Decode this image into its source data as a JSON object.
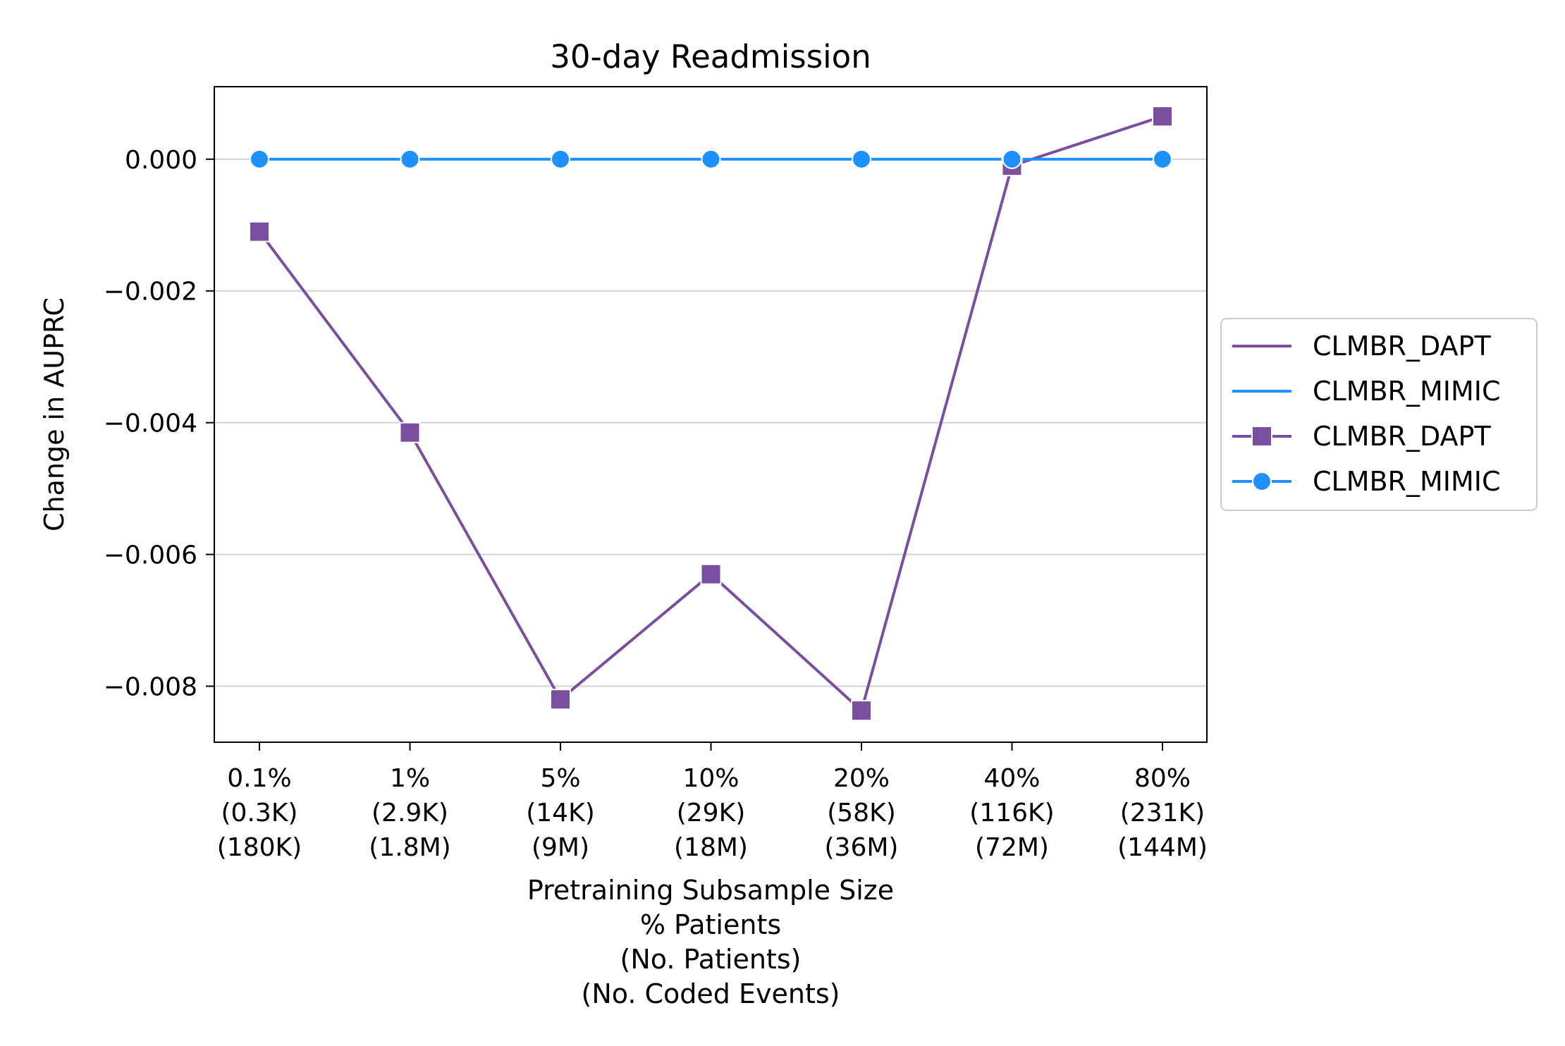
{
  "chart_data": {
    "type": "line",
    "title": "30-day Readmission",
    "ylabel": "Change in AUPRC",
    "xlabel_lines": [
      "Pretraining Subsample Size",
      "% Patients",
      "(No. Patients)",
      "(No. Coded Events)"
    ],
    "categories": [
      [
        "0.1%",
        "(0.3K)",
        "(180K)"
      ],
      [
        "1%",
        "(2.9K)",
        "(1.8M)"
      ],
      [
        "5%",
        "(14K)",
        "(9M)"
      ],
      [
        "10%",
        "(29K)",
        "(18M)"
      ],
      [
        "20%",
        "(58K)",
        "(36M)"
      ],
      [
        "40%",
        "(116K)",
        "(72M)"
      ],
      [
        "80%",
        "(231K)",
        "(144M)"
      ]
    ],
    "ylim": [
      -0.00885,
      0.0011
    ],
    "yticks": [
      0.0,
      -0.002,
      -0.004,
      -0.006,
      -0.008
    ],
    "ytick_labels": [
      "0.000",
      "−0.002",
      "−0.004",
      "−0.006",
      "−0.008"
    ],
    "grid": "horizontal",
    "legend_position": "outside-right",
    "legend_entries": [
      {
        "label": "CLMBR_DAPT",
        "series": 0,
        "marker": false
      },
      {
        "label": "CLMBR_MIMIC",
        "series": 1,
        "marker": false
      },
      {
        "label": "CLMBR_DAPT",
        "series": 0,
        "marker": true
      },
      {
        "label": "CLMBR_MIMIC",
        "series": 1,
        "marker": true
      }
    ],
    "series": [
      {
        "name": "CLMBR_DAPT",
        "color": "#7b4fa0",
        "marker": "square",
        "values": [
          -0.0011,
          -0.00415,
          -0.0082,
          -0.0063,
          -0.00837,
          -0.0001,
          0.00065
        ]
      },
      {
        "name": "CLMBR_MIMIC",
        "color": "#1e90ff",
        "marker": "circle",
        "values": [
          0.0,
          0.0,
          0.0,
          0.0,
          0.0,
          0.0,
          0.0
        ]
      }
    ]
  }
}
